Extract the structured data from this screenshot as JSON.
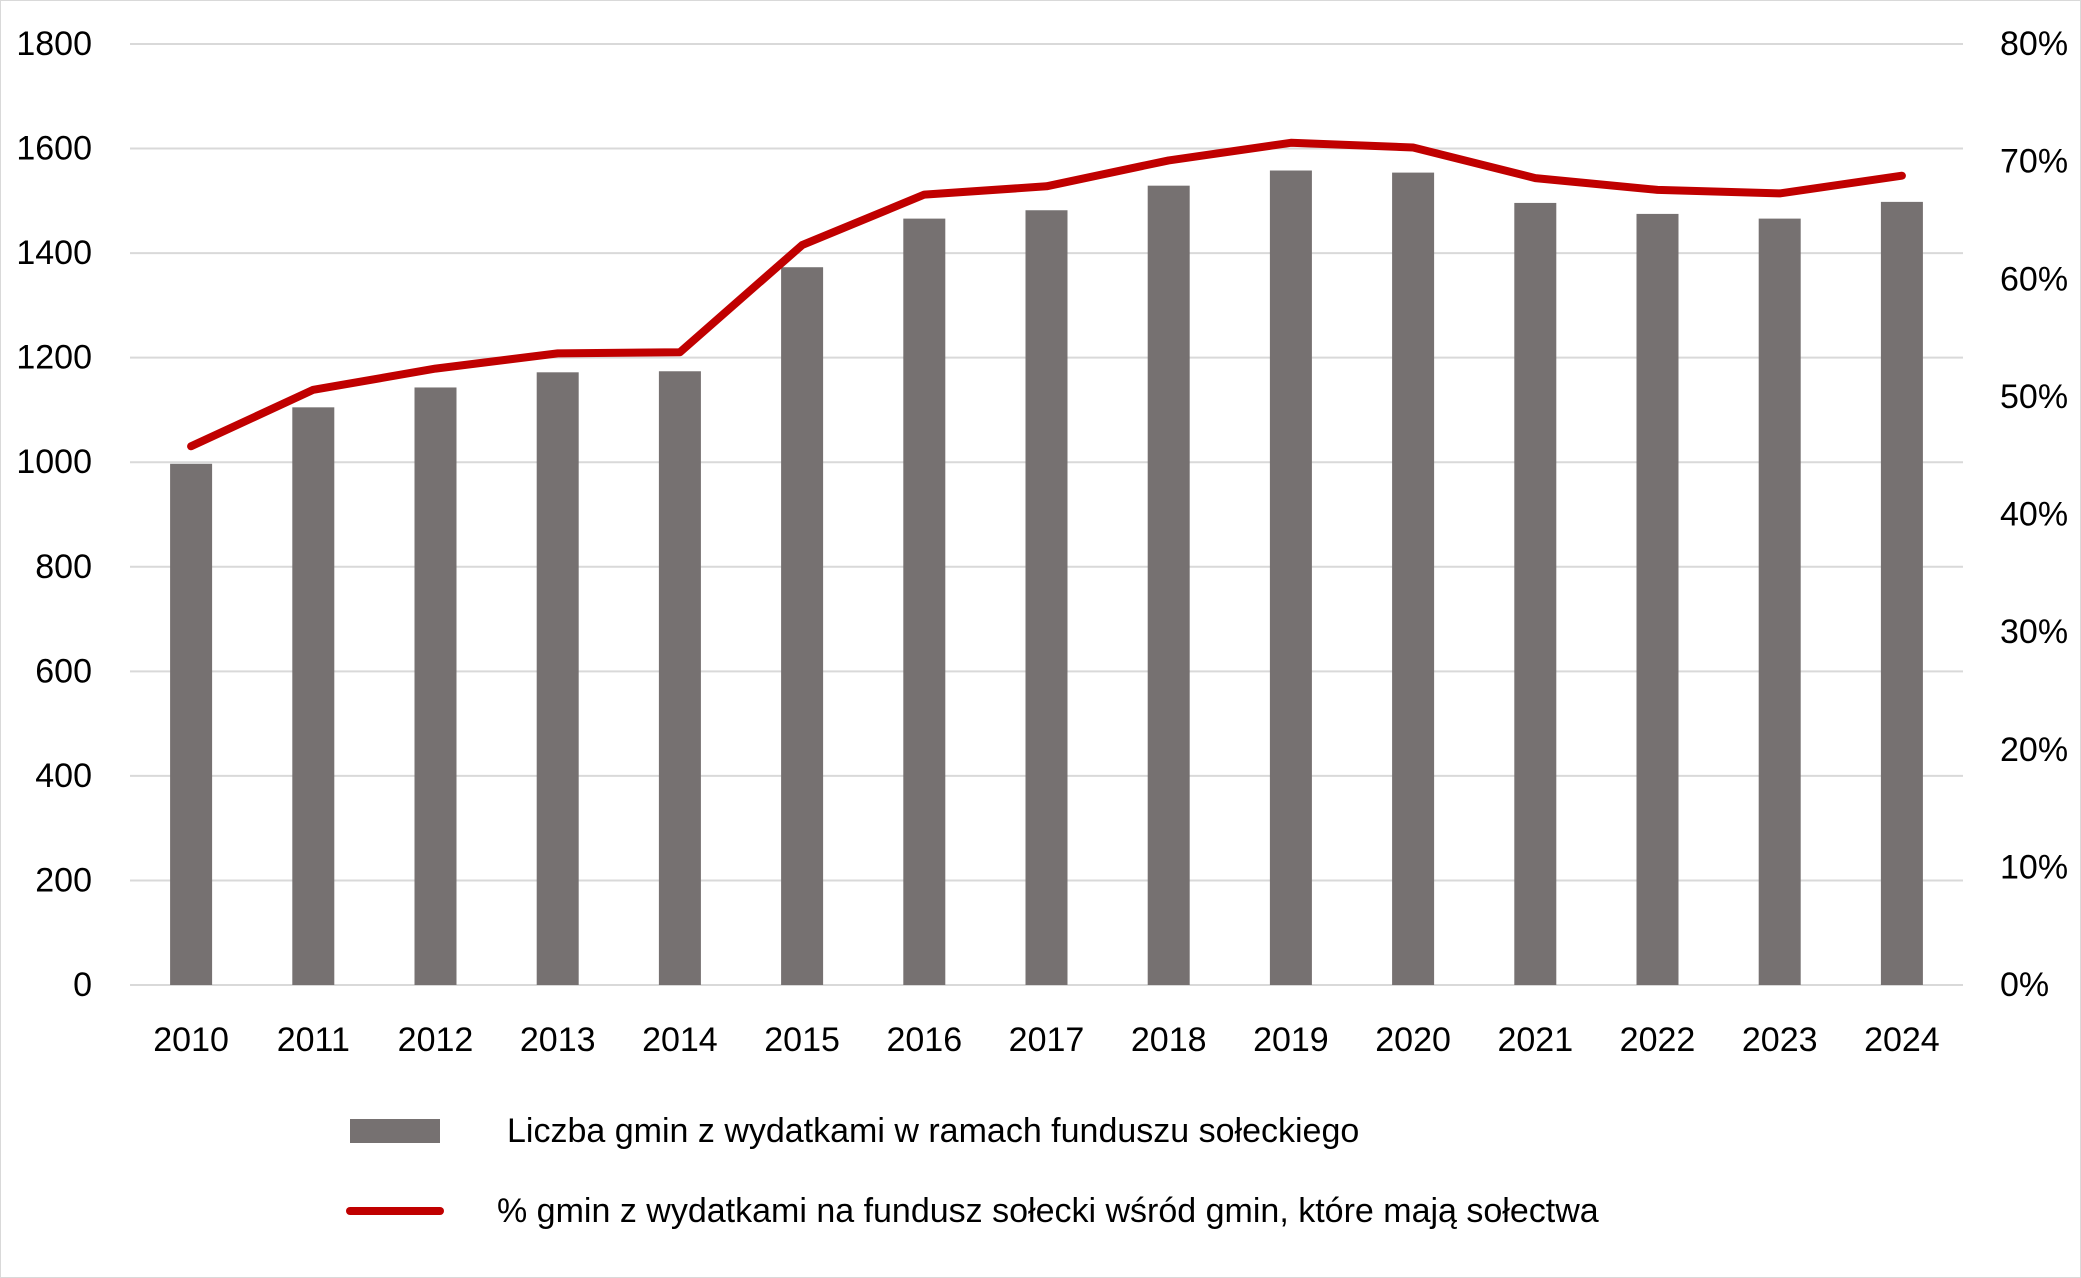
{
  "chart_data": {
    "type": "bar",
    "categories": [
      "2010",
      "2011",
      "2012",
      "2013",
      "2014",
      "2015",
      "2016",
      "2017",
      "2018",
      "2019",
      "2020",
      "2021",
      "2022",
      "2023",
      "2024"
    ],
    "series": [
      {
        "name": "Liczba gmin z wydatkami w ramach funduszu sołeckiego",
        "type": "bar",
        "axis": "left",
        "color": "#767171",
        "values": [
          997,
          1105,
          1143,
          1172,
          1174,
          1373,
          1466,
          1482,
          1529,
          1558,
          1554,
          1496,
          1475,
          1466,
          1498
        ]
      },
      {
        "name": "% gmin z wydatkami na fundusz sołecki wśród gmin, które mają sołectwa",
        "type": "line",
        "axis": "right",
        "color": "#c00000",
        "values": [
          45.8,
          50.6,
          52.4,
          53.7,
          53.8,
          62.9,
          67.2,
          67.9,
          70.1,
          71.6,
          71.2,
          68.6,
          67.6,
          67.3,
          68.8
        ]
      }
    ],
    "y_left": {
      "min": 0,
      "max": 1800,
      "step": 200,
      "ticks": [
        "0",
        "200",
        "400",
        "600",
        "800",
        "1000",
        "1200",
        "1400",
        "1600",
        "1800"
      ]
    },
    "y_right": {
      "min": 0,
      "max": 80,
      "step": 10,
      "ticks": [
        "0%",
        "10%",
        "20%",
        "30%",
        "40%",
        "50%",
        "60%",
        "70%",
        "80%"
      ]
    },
    "grid": true,
    "legend_position": "bottom",
    "legend": [
      {
        "label": "Liczba gmin z wydatkami w ramach funduszu sołeckiego",
        "color": "#767171",
        "marker": "bar"
      },
      {
        "label": "% gmin z wydatkami na fundusz sołecki wśród gmin, które mają sołectwa",
        "color": "#c00000",
        "marker": "line"
      }
    ]
  }
}
